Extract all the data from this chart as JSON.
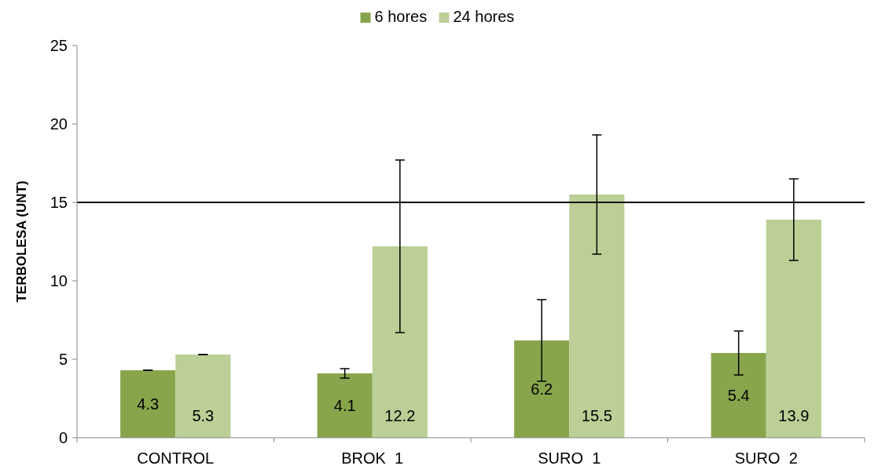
{
  "chart_data": {
    "type": "bar",
    "ylabel": "TERBOLESA (UNT)",
    "categories": [
      "CONTROL",
      "BROK  1",
      "SURO  1",
      "SURO  2"
    ],
    "series": [
      {
        "name": "6 hores",
        "color": "#88a54c",
        "values": [
          4.3,
          4.1,
          6.2,
          5.4
        ],
        "errors": [
          0,
          0.3,
          2.6,
          1.4
        ]
      },
      {
        "name": "24 hores",
        "color": "#bbcf96",
        "values": [
          5.3,
          12.2,
          15.5,
          13.9
        ],
        "errors": [
          0,
          5.5,
          3.8,
          2.6
        ]
      }
    ],
    "ylim": [
      0,
      25
    ],
    "yticks": [
      0,
      5,
      10,
      15,
      20,
      25
    ],
    "grid": false,
    "legend": "top",
    "data_labels": true,
    "ref_lines": [
      {
        "axis": "y",
        "value": 15,
        "color": "#000000"
      }
    ]
  }
}
